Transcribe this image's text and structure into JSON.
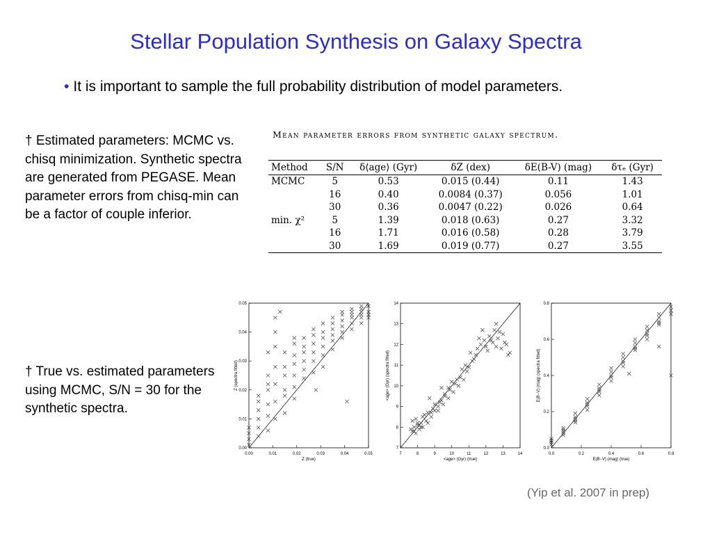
{
  "slide": {
    "title": "Stellar Population Synthesis on Galaxy Spectra",
    "bullet": "It is important to sample the full probability distribution of model parameters.",
    "bullet_marker": "•",
    "note1": "† Estimated parameters: MCMC vs. chisq minimization. Synthetic spectra are generated from PEGASE. Mean parameter errors from chisq-min can be a factor of couple inferior.",
    "note2": "† True vs. estimated parameters using MCMC, S/N = 30 for the synthetic spectra.",
    "citation": "(Yip et al. 2007 in prep)",
    "colors": {
      "title": "#2b2bd6",
      "citation": "#666666"
    }
  },
  "table": {
    "caption": "Mean parameter errors from synthetic galaxy spectrum.",
    "headers": [
      "Method",
      "S/N",
      "δ⟨age⟩ (Gyr)",
      "δZ (dex)",
      "δE(B-V) (mag)",
      "δτₑ (Gyr)"
    ],
    "rows": [
      [
        "MCMC",
        "5",
        "0.53",
        "0.015 (0.44)",
        "0.11",
        "1.43"
      ],
      [
        "",
        "16",
        "0.40",
        "0.0084 (0.37)",
        "0.056",
        "1.01"
      ],
      [
        "",
        "30",
        "0.36",
        "0.0047 (0.22)",
        "0.026",
        "0.64"
      ],
      [
        "min. χ²",
        "5",
        "1.39",
        "0.018 (0.63)",
        "0.27",
        "3.32"
      ],
      [
        "",
        "16",
        "1.71",
        "0.016 (0.58)",
        "0.28",
        "3.79"
      ],
      [
        "",
        "30",
        "1.69",
        "0.019 (0.77)",
        "0.27",
        "3.55"
      ]
    ]
  },
  "chart_data": [
    {
      "type": "scatter",
      "xlabel": "Z (true)",
      "ylabel": "Z (spectra fitted)",
      "xlim": [
        0.0,
        0.05
      ],
      "ylim": [
        0.0,
        0.05
      ],
      "xticks": [
        "0.00",
        "0.01",
        "0.02",
        "0.03",
        "0.04",
        "0.05"
      ],
      "yticks": [
        "0.00",
        "0.01",
        "0.02",
        "0.03",
        "0.04",
        "0.05"
      ],
      "diagonal": true,
      "x": [
        0.0,
        0.0,
        0.0,
        0.0,
        0.004,
        0.004,
        0.004,
        0.004,
        0.004,
        0.004,
        0.008,
        0.008,
        0.008,
        0.008,
        0.008,
        0.008,
        0.011,
        0.011,
        0.011,
        0.011,
        0.011,
        0.011,
        0.015,
        0.015,
        0.015,
        0.015,
        0.015,
        0.015,
        0.019,
        0.019,
        0.019,
        0.019,
        0.019,
        0.019,
        0.023,
        0.023,
        0.023,
        0.023,
        0.023,
        0.023,
        0.027,
        0.027,
        0.027,
        0.027,
        0.027,
        0.027,
        0.031,
        0.031,
        0.031,
        0.031,
        0.031,
        0.031,
        0.035,
        0.035,
        0.035,
        0.035,
        0.035,
        0.035,
        0.039,
        0.039,
        0.039,
        0.039,
        0.039,
        0.039,
        0.043,
        0.043,
        0.043,
        0.043,
        0.043,
        0.043,
        0.047,
        0.047,
        0.047,
        0.047,
        0.047,
        0.047,
        0.05,
        0.05,
        0.05,
        0.05,
        0.011,
        0.013,
        0.008,
        0.041,
        0.019,
        0.028
      ],
      "y": [
        0.001,
        0.003,
        0.005,
        0.007,
        0.004,
        0.007,
        0.01,
        0.013,
        0.016,
        0.018,
        0.006,
        0.011,
        0.015,
        0.02,
        0.022,
        0.025,
        0.01,
        0.016,
        0.022,
        0.028,
        0.035,
        0.04,
        0.012,
        0.018,
        0.02,
        0.025,
        0.028,
        0.033,
        0.017,
        0.021,
        0.025,
        0.029,
        0.032,
        0.036,
        0.024,
        0.027,
        0.03,
        0.033,
        0.035,
        0.038,
        0.026,
        0.03,
        0.033,
        0.036,
        0.039,
        0.041,
        0.028,
        0.032,
        0.035,
        0.038,
        0.04,
        0.043,
        0.034,
        0.037,
        0.039,
        0.041,
        0.043,
        0.045,
        0.038,
        0.04,
        0.042,
        0.044,
        0.046,
        0.047,
        0.041,
        0.043,
        0.045,
        0.046,
        0.047,
        0.048,
        0.043,
        0.045,
        0.046,
        0.047,
        0.048,
        0.049,
        0.045,
        0.046,
        0.047,
        0.049,
        0.045,
        0.047,
        0.033,
        0.016,
        0.038,
        0.02
      ]
    },
    {
      "type": "scatter",
      "xlabel": "<age> (Gyr) (true)",
      "ylabel": "<age> (Gyr) (spectra fitted)",
      "xlim": [
        7,
        14
      ],
      "ylim": [
        7,
        14
      ],
      "xticks": [
        "7",
        "8",
        "9",
        "10",
        "11",
        "12",
        "13",
        "14"
      ],
      "yticks": [
        "7",
        "8",
        "9",
        "10",
        "11",
        "12",
        "13",
        "14"
      ],
      "diagonal": true,
      "x": [
        7.6,
        7.7,
        7.8,
        7.9,
        8.0,
        8.1,
        8.2,
        8.3,
        7.7,
        7.9,
        8.1,
        8.3,
        8.5,
        8.6,
        8.8,
        8.9,
        9.0,
        9.2,
        9.3,
        9.5,
        9.6,
        9.8,
        9.9,
        10.1,
        10.2,
        10.4,
        10.5,
        10.7,
        10.9,
        11.0,
        11.2,
        11.4,
        11.5,
        11.7,
        11.9,
        12.0,
        12.2,
        12.4,
        12.5,
        12.7,
        12.9,
        13.0,
        13.2,
        13.4,
        7.8,
        8.0,
        8.2,
        8.4,
        8.6,
        8.8,
        9.0,
        9.2,
        9.4,
        9.6,
        9.8,
        10.0,
        10.3,
        10.6,
        10.8,
        11.1,
        11.3,
        11.6,
        12.1,
        12.3,
        12.6,
        12.8,
        13.1,
        13.3,
        11.8,
        12.6,
        8.7,
        9.4
      ],
      "y": [
        7.9,
        7.8,
        8.0,
        7.7,
        8.1,
        7.9,
        8.2,
        8.0,
        8.3,
        8.4,
        8.1,
        8.5,
        8.3,
        8.7,
        8.5,
        8.9,
        8.8,
        9.0,
        9.2,
        9.1,
        9.5,
        9.4,
        9.8,
        9.7,
        10.1,
        10.0,
        10.4,
        10.3,
        10.7,
        10.9,
        11.2,
        11.5,
        11.8,
        12.0,
        12.2,
        11.9,
        12.4,
        12.1,
        12.7,
        12.3,
        11.8,
        12.5,
        12.0,
        11.6,
        7.8,
        8.2,
        8.0,
        8.6,
        8.2,
        8.7,
        9.1,
        8.8,
        9.3,
        9.6,
        9.9,
        10.2,
        10.3,
        10.8,
        11.0,
        11.6,
        11.3,
        12.3,
        11.7,
        12.2,
        11.9,
        12.6,
        12.1,
        11.5,
        12.7,
        13.0,
        9.4,
        9.9
      ]
    },
    {
      "type": "scatter",
      "xlabel": "E(B−V) (mag) (true)",
      "ylabel": "E(B−V) (mag) (spectra fitted)",
      "xlim": [
        0.0,
        0.8
      ],
      "ylim": [
        0.0,
        0.8
      ],
      "xticks": [
        "0.0",
        "0.2",
        "0.4",
        "0.6",
        "0.8"
      ],
      "yticks": [
        "0.0",
        "0.2",
        "0.4",
        "0.6",
        "0.8"
      ],
      "diagonal": true,
      "x": [
        0.0,
        0.0,
        0.0,
        0.0,
        0.08,
        0.08,
        0.08,
        0.08,
        0.08,
        0.16,
        0.16,
        0.16,
        0.16,
        0.16,
        0.24,
        0.24,
        0.24,
        0.24,
        0.24,
        0.32,
        0.32,
        0.32,
        0.32,
        0.32,
        0.4,
        0.4,
        0.4,
        0.4,
        0.4,
        0.48,
        0.48,
        0.48,
        0.48,
        0.48,
        0.56,
        0.56,
        0.56,
        0.56,
        0.56,
        0.64,
        0.64,
        0.64,
        0.64,
        0.64,
        0.72,
        0.72,
        0.72,
        0.72,
        0.72,
        0.8,
        0.8,
        0.8,
        0.52,
        0.72,
        0.8
      ],
      "y": [
        0.02,
        0.03,
        0.04,
        0.05,
        0.07,
        0.08,
        0.09,
        0.1,
        0.11,
        0.14,
        0.15,
        0.16,
        0.17,
        0.19,
        0.21,
        0.23,
        0.24,
        0.25,
        0.27,
        0.29,
        0.31,
        0.32,
        0.33,
        0.35,
        0.37,
        0.39,
        0.4,
        0.42,
        0.44,
        0.45,
        0.47,
        0.48,
        0.5,
        0.52,
        0.54,
        0.55,
        0.56,
        0.58,
        0.6,
        0.6,
        0.62,
        0.63,
        0.65,
        0.67,
        0.68,
        0.69,
        0.7,
        0.72,
        0.74,
        0.74,
        0.76,
        0.78,
        0.41,
        0.56,
        0.4
      ]
    }
  ]
}
